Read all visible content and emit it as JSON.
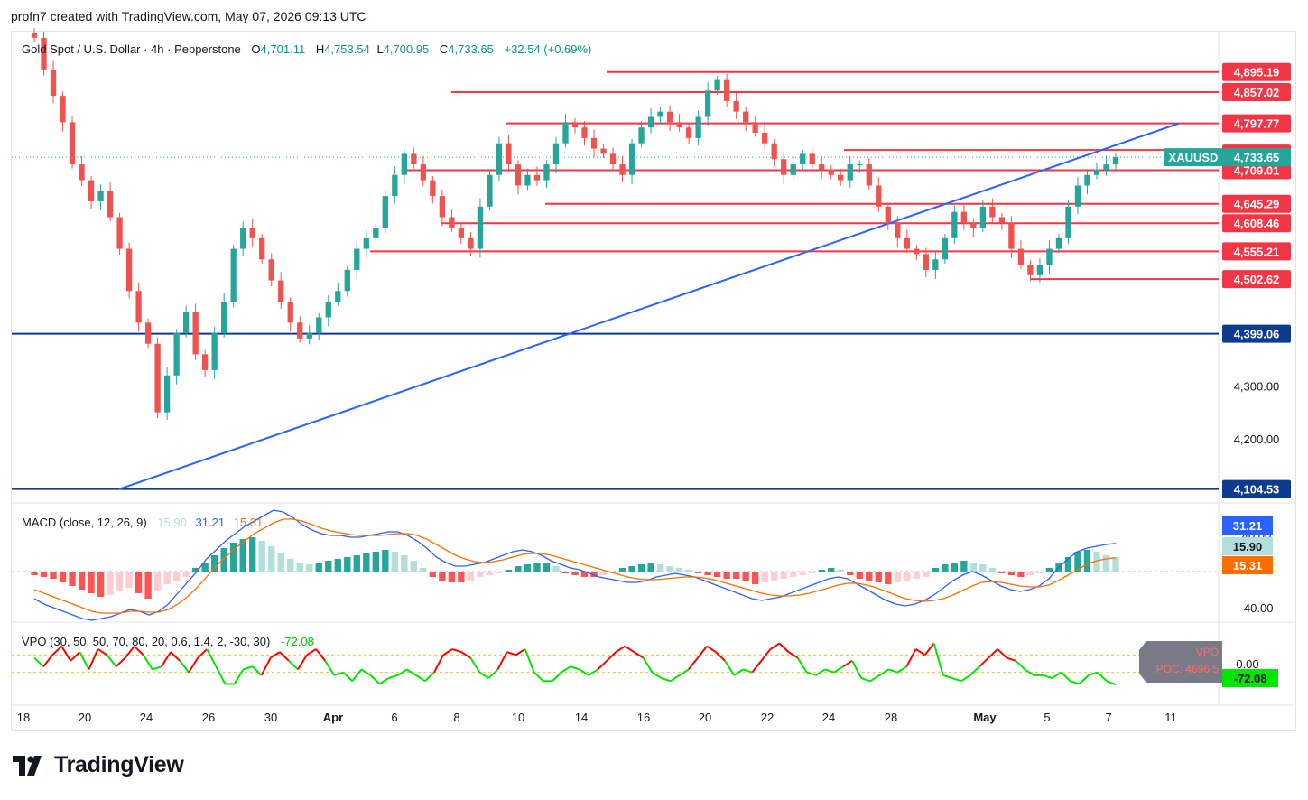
{
  "header": {
    "credit": "profn7 created with TradingView.com, May 07, 2026 09:13 UTC"
  },
  "legend": {
    "symbol": "Gold Spot / U.S. Dollar · 4h · Pepperstone",
    "o_label": "O",
    "o_value": "4,701.11",
    "h_label": "H",
    "h_value": "4,753.54",
    "l_label": "L",
    "l_value": "4,700.95",
    "c_label": "C",
    "c_value": "4,733.65",
    "change": "+32.54 (+0.69%)"
  },
  "macd_legend": {
    "title": "MACD (close, 12, 26, 9)",
    "hist": "15.90",
    "macd": "31.21",
    "signal": "15.31"
  },
  "vpo_legend": {
    "title": "VPO (30, 50, 50, 70, 80, 20, 0.6, 1.4, 2, -30, 30)",
    "value": "-72.08",
    "vpo_tag": "VPO",
    "poc_tag": "POC: 4696.5"
  },
  "ticker_tag": "XAUUSD",
  "colors": {
    "up": "#26a69a",
    "down": "#ef5350",
    "level": "#f23645",
    "trend": "#2962ff",
    "support": "#0d3b8f",
    "macd": "#2962ff",
    "signal": "#ff6d00",
    "vpo_up": "#00e600",
    "vpo_down": "#ff0000"
  },
  "chart_data": [
    {
      "type": "candlestick",
      "title": "Gold Spot / U.S. Dollar · 4h · Pepperstone",
      "x_ticks": [
        "18",
        "20",
        "24",
        "26",
        "30",
        "Apr",
        "6",
        "8",
        "10",
        "14",
        "16",
        "20",
        "22",
        "24",
        "28",
        "May",
        "5",
        "7",
        "11"
      ],
      "y_ticks": [
        "4,200.00",
        "4,300.00"
      ],
      "ylim": [
        4080,
        4970
      ],
      "last_price": 4733.65,
      "levels": [
        {
          "value": 4895.19,
          "label": "4,895.19"
        },
        {
          "value": 4857.02,
          "label": "4,857.02"
        },
        {
          "value": 4797.77,
          "label": "4,797.77"
        },
        {
          "value": 4740.49,
          "label": "4,740.49"
        },
        {
          "value": 4709.01,
          "label": "4,709.01"
        },
        {
          "value": 4645.29,
          "label": "4,645.29"
        },
        {
          "value": 4608.46,
          "label": "4,608.46"
        },
        {
          "value": 4555.21,
          "label": "4,555.21"
        },
        {
          "value": 4502.62,
          "label": "4,502.62"
        }
      ],
      "support_lines": [
        {
          "value": 4399.06,
          "label": "4,399.06"
        },
        {
          "value": 4104.53,
          "label": "4,104.53"
        }
      ],
      "trendline": {
        "from": 4104.53,
        "to": 4797.77
      },
      "close_series": [
        4960,
        4900,
        4850,
        4800,
        4720,
        4690,
        4650,
        4670,
        4620,
        4560,
        4480,
        4420,
        4380,
        4250,
        4320,
        4400,
        4440,
        4360,
        4330,
        4400,
        4460,
        4560,
        4600,
        4580,
        4540,
        4500,
        4460,
        4420,
        4390,
        4400,
        4430,
        4460,
        4480,
        4520,
        4560,
        4580,
        4600,
        4660,
        4700,
        4740,
        4720,
        4690,
        4660,
        4620,
        4600,
        4580,
        4560,
        4640,
        4700,
        4760,
        4720,
        4680,
        4700,
        4690,
        4720,
        4760,
        4800,
        4790,
        4770,
        4750,
        4740,
        4720,
        4700,
        4760,
        4790,
        4810,
        4820,
        4800,
        4790,
        4770,
        4810,
        4860,
        4880,
        4840,
        4820,
        4800,
        4780,
        4760,
        4730,
        4700,
        4720,
        4740,
        4720,
        4710,
        4700,
        4690,
        4720,
        4720,
        4680,
        4640,
        4610,
        4580,
        4560,
        4550,
        4520,
        4540,
        4580,
        4630,
        4610,
        4600,
        4640,
        4620,
        4610,
        4560,
        4530,
        4510,
        4530,
        4560,
        4580,
        4640,
        4680,
        4700,
        4710,
        4720,
        4733.65
      ]
    },
    {
      "type": "macd",
      "title": "MACD (close, 12, 26, 9)",
      "y_ticks": [
        "40.00",
        "-40.00"
      ],
      "ylim": [
        -55,
        75
      ],
      "last": {
        "histogram": 15.9,
        "macd": 31.21,
        "signal": 15.31
      },
      "histogram": [
        -4,
        -6,
        -8,
        -12,
        -16,
        -20,
        -24,
        -28,
        -26,
        -22,
        -18,
        -24,
        -30,
        -22,
        -14,
        -10,
        -6,
        4,
        10,
        18,
        26,
        32,
        36,
        38,
        34,
        28,
        20,
        14,
        10,
        8,
        10,
        12,
        14,
        16,
        18,
        20,
        22,
        24,
        22,
        18,
        12,
        4,
        -6,
        -10,
        -12,
        -12,
        -10,
        -6,
        -4,
        -2,
        2,
        6,
        8,
        10,
        10,
        6,
        -2,
        -4,
        -6,
        -6,
        -4,
        -2,
        4,
        6,
        8,
        10,
        8,
        6,
        4,
        2,
        -2,
        -4,
        -6,
        -8,
        -8,
        -10,
        -14,
        -12,
        -10,
        -8,
        -6,
        -4,
        -2,
        2,
        4,
        2,
        -4,
        -8,
        -10,
        -12,
        -14,
        -12,
        -10,
        -8,
        -6,
        4,
        8,
        10,
        12,
        10,
        8,
        4,
        -2,
        -4,
        -6,
        -4,
        -2,
        4,
        10,
        16,
        22,
        24,
        22,
        18,
        15.9
      ],
      "macd_series": [
        -30,
        -36,
        -40,
        -44,
        -48,
        -52,
        -54,
        -52,
        -50,
        -46,
        -42,
        -44,
        -48,
        -44,
        -36,
        -24,
        -12,
        0,
        14,
        24,
        34,
        42,
        50,
        56,
        62,
        68,
        66,
        60,
        52,
        46,
        42,
        40,
        40,
        38,
        38,
        40,
        42,
        44,
        44,
        40,
        34,
        26,
        16,
        10,
        6,
        6,
        8,
        10,
        14,
        18,
        22,
        24,
        22,
        18,
        12,
        8,
        4,
        2,
        -2,
        -6,
        -8,
        -10,
        -12,
        -12,
        -10,
        -6,
        -4,
        -2,
        -4,
        -6,
        -10,
        -14,
        -18,
        -22,
        -26,
        -30,
        -32,
        -30,
        -28,
        -24,
        -20,
        -16,
        -12,
        -8,
        -6,
        -8,
        -14,
        -20,
        -26,
        -32,
        -36,
        -38,
        -36,
        -32,
        -26,
        -18,
        -10,
        -4,
        0,
        -4,
        -10,
        -16,
        -20,
        -22,
        -20,
        -16,
        -8,
        4,
        14,
        22,
        26,
        28,
        30,
        31.21
      ],
      "signal_series": [
        -20,
        -24,
        -28,
        -32,
        -36,
        -40,
        -44,
        -46,
        -46,
        -46,
        -44,
        -44,
        -45,
        -45,
        -42,
        -36,
        -28,
        -18,
        -6,
        6,
        16,
        26,
        34,
        42,
        48,
        54,
        58,
        58,
        56,
        52,
        48,
        45,
        43,
        41,
        40,
        40,
        40,
        41,
        42,
        42,
        40,
        36,
        30,
        24,
        18,
        14,
        11,
        10,
        11,
        13,
        16,
        19,
        20,
        20,
        18,
        15,
        12,
        9,
        6,
        3,
        0,
        -3,
        -6,
        -8,
        -9,
        -9,
        -8,
        -7,
        -6,
        -6,
        -7,
        -9,
        -12,
        -15,
        -18,
        -21,
        -24,
        -26,
        -27,
        -27,
        -26,
        -24,
        -21,
        -18,
        -15,
        -13,
        -13,
        -15,
        -18,
        -22,
        -26,
        -30,
        -32,
        -33,
        -32,
        -30,
        -26,
        -21,
        -16,
        -12,
        -11,
        -12,
        -14,
        -16,
        -17,
        -17,
        -15,
        -10,
        -4,
        2,
        8,
        12,
        14,
        15.31
      ]
    },
    {
      "type": "line",
      "title": "VPO (30, 50, 50, 70, 80, 20, 0.6, 1.4, 2, -30, 30)",
      "y_ticks": [
        "0.00"
      ],
      "ylim": [
        -140,
        140
      ],
      "poc": 4696.5,
      "last": -72.08,
      "values": [
        20,
        -10,
        30,
        60,
        10,
        40,
        -20,
        50,
        30,
        -10,
        20,
        60,
        30,
        -20,
        -10,
        40,
        10,
        -30,
        20,
        50,
        -10,
        -70,
        -70,
        -20,
        -10,
        -40,
        20,
        40,
        10,
        -20,
        30,
        50,
        10,
        -40,
        -30,
        -60,
        -20,
        -40,
        -70,
        -50,
        -40,
        -20,
        -40,
        -60,
        -30,
        30,
        50,
        40,
        20,
        -30,
        -50,
        -20,
        40,
        30,
        50,
        -30,
        -60,
        -60,
        -30,
        -10,
        -20,
        -40,
        -20,
        10,
        40,
        60,
        40,
        20,
        -30,
        -50,
        -60,
        -40,
        -20,
        20,
        60,
        40,
        10,
        -40,
        -20,
        -30,
        10,
        50,
        70,
        40,
        20,
        -30,
        -40,
        -20,
        -30,
        -10,
        10,
        -50,
        -60,
        -40,
        -20,
        -30,
        -10,
        50,
        30,
        70,
        -40,
        -50,
        -60,
        -40,
        -10,
        20,
        50,
        20,
        10,
        -20,
        -40,
        -40,
        -50,
        -30,
        -60,
        -70,
        -40,
        -30,
        -60,
        -72.08
      ]
    }
  ]
}
